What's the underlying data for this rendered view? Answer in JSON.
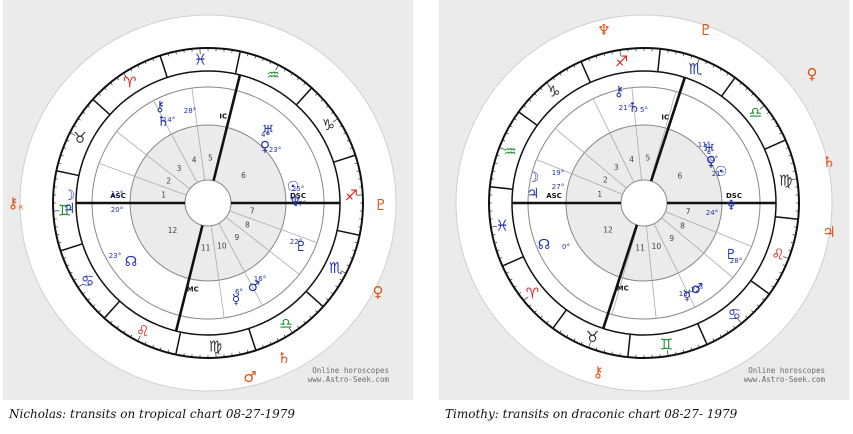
{
  "charts": [
    {
      "id": "nicholas",
      "caption": "Nicholas: transits on tropical chart 08-27-1979",
      "watermark": [
        "Online horoscopes",
        "www.Astro-Seek.com"
      ],
      "angle_labels": {
        "asc": "ASC",
        "dsc": "DSC",
        "mc": "MC",
        "ic": "IC"
      },
      "house_numbers": [
        "1",
        "2",
        "3",
        "4",
        "5",
        "6",
        "7",
        "8",
        "9",
        "10",
        "11",
        "12"
      ],
      "zodiac": [
        {
          "glyph": "♉",
          "color": "#333333"
        },
        {
          "glyph": "♈",
          "color": "#e02020"
        },
        {
          "glyph": "♓",
          "color": "#2233aa"
        },
        {
          "glyph": "♒",
          "color": "#1f8f2f"
        },
        {
          "glyph": "♑",
          "color": "#333333"
        },
        {
          "glyph": "♐",
          "color": "#e02020"
        },
        {
          "glyph": "♏",
          "color": "#2233aa"
        },
        {
          "glyph": "♎",
          "color": "#1f8f2f"
        },
        {
          "glyph": "♍",
          "color": "#333333"
        },
        {
          "glyph": "♌",
          "color": "#e02020"
        },
        {
          "glyph": "♋",
          "color": "#2233aa"
        },
        {
          "glyph": "♊",
          "color": "#1f8f2f"
        }
      ],
      "outer_planets": [
        {
          "glyph": "⚷",
          "sub": "R",
          "color": "#e05010"
        },
        {
          "glyph": "♄",
          "sub": "",
          "color": "#e05010"
        },
        {
          "glyph": "♀",
          "sub": "",
          "color": "#e05010"
        },
        {
          "glyph": "♂",
          "sub": "",
          "color": "#e05010"
        },
        {
          "glyph": "♇",
          "sub": "",
          "color": "#e05010"
        }
      ],
      "natal_planets": [
        {
          "glyph": "☽",
          "color": "#2233aa",
          "deg": "12°"
        },
        {
          "glyph": "♃",
          "color": "#2233aa",
          "deg": "20°"
        },
        {
          "glyph": "⚷",
          "color": "#2233aa",
          "deg": "28°"
        },
        {
          "glyph": "♄",
          "color": "#2233aa",
          "deg": "14°"
        },
        {
          "glyph": "♅",
          "color": "#2233aa",
          "deg": "4°"
        },
        {
          "glyph": "♀",
          "color": "#2233aa",
          "deg": "23°"
        },
        {
          "glyph": "☉",
          "color": "#2233aa",
          "deg": "25°"
        },
        {
          "glyph": "♆",
          "color": "#2233aa",
          "deg": "17°"
        },
        {
          "glyph": "♇",
          "color": "#2233aa",
          "deg": "22°"
        },
        {
          "glyph": "♂",
          "color": "#2233aa",
          "deg": "16°"
        },
        {
          "glyph": "☿",
          "color": "#2233aa",
          "deg": "6°"
        },
        {
          "glyph": "☊",
          "color": "#2233aa",
          "deg": "23°"
        }
      ]
    },
    {
      "id": "timothy",
      "caption": "Timothy: transits on draconic chart 08-27- 1979",
      "watermark": [
        "Online horoscopes",
        "www.Astro-Seek.com"
      ],
      "angle_labels": {
        "asc": "ASC",
        "dsc": "DSC",
        "mc": "MC",
        "ic": "IC"
      },
      "house_numbers": [
        "1",
        "2",
        "3",
        "4",
        "5",
        "6",
        "7",
        "8",
        "9",
        "10",
        "11",
        "12"
      ],
      "zodiac": [
        {
          "glyph": "♒",
          "color": "#1f8f2f"
        },
        {
          "glyph": "♑",
          "color": "#333333"
        },
        {
          "glyph": "♐",
          "color": "#e02020"
        },
        {
          "glyph": "♏",
          "color": "#2233aa"
        },
        {
          "glyph": "♎",
          "color": "#1f8f2f"
        },
        {
          "glyph": "♍",
          "color": "#333333"
        },
        {
          "glyph": "♌",
          "color": "#e02020"
        },
        {
          "glyph": "♋",
          "color": "#2233aa"
        },
        {
          "glyph": "♊",
          "color": "#1f8f2f"
        },
        {
          "glyph": "♉",
          "color": "#333333"
        },
        {
          "glyph": "♈",
          "color": "#e02020"
        },
        {
          "glyph": "♓",
          "color": "#2233aa"
        }
      ],
      "outer_planets": [
        {
          "glyph": "♆",
          "sub": "",
          "color": "#e05010"
        },
        {
          "glyph": "♇",
          "sub": "",
          "color": "#e05010"
        },
        {
          "glyph": "♀",
          "sub": "",
          "color": "#e05010"
        },
        {
          "glyph": "♄",
          "sub": "",
          "color": "#e05010"
        },
        {
          "glyph": "♃",
          "sub": "",
          "color": "#e05010"
        },
        {
          "glyph": "⚷",
          "sub": "",
          "color": "#e05010"
        }
      ],
      "natal_planets": [
        {
          "glyph": "☽",
          "color": "#2233aa",
          "deg": "19°"
        },
        {
          "glyph": "♃",
          "color": "#2233aa",
          "deg": "27°"
        },
        {
          "glyph": "⚷",
          "color": "#2233aa",
          "deg": "21°"
        },
        {
          "glyph": "♄",
          "color": "#2233aa",
          "deg": "5°"
        },
        {
          "glyph": "♅",
          "color": "#2233aa",
          "deg": "11°"
        },
        {
          "glyph": "♀",
          "color": "#2233aa",
          "deg": "0°"
        },
        {
          "glyph": "☉",
          "color": "#2233aa",
          "deg": "21°"
        },
        {
          "glyph": "♆",
          "color": "#2233aa",
          "deg": "24°"
        },
        {
          "glyph": "♇",
          "color": "#2233aa",
          "deg": "28°"
        },
        {
          "glyph": "♂",
          "color": "#2233aa",
          "deg": "13°"
        },
        {
          "glyph": "☿",
          "color": "#2233aa",
          "deg": "22°"
        },
        {
          "glyph": "☊",
          "color": "#2233aa",
          "deg": "0°"
        }
      ]
    }
  ]
}
